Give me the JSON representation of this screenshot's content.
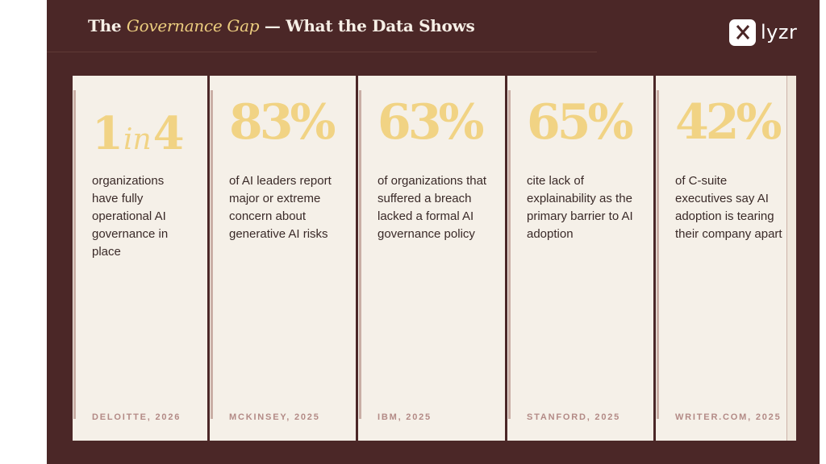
{
  "header": {
    "title_prefix": "The",
    "title_accent": "Governance Gap",
    "title_suffix": "— What the Data Shows"
  },
  "brand": {
    "logo_text": "lyzr"
  },
  "colors": {
    "background": "#4b2727",
    "card": "#f5f0e8",
    "stat": "#f1d384",
    "accent": "#eccd7f",
    "source": "#b38a86"
  },
  "cards": [
    {
      "stat_a": "1",
      "stat_in": "in",
      "stat_b": "4",
      "description": "organizations have fully operational AI governance in place",
      "source": "DELOITTE, 2026"
    },
    {
      "stat": "83%",
      "description": "of AI leaders report major or extreme concern about generative AI risks",
      "source": "MCKINSEY, 2025"
    },
    {
      "stat": "63%",
      "description": "of organizations that suffered a breach lacked a formal AI governance policy",
      "source": "IBM, 2025"
    },
    {
      "stat": "65%",
      "description": "cite lack of explainability as the primary barrier to AI adoption",
      "source": "STANFORD, 2025"
    },
    {
      "stat": "42%",
      "description": "of C-suite executives say AI adoption is tearing their company apart",
      "source": "WRITER.COM, 2025"
    }
  ]
}
